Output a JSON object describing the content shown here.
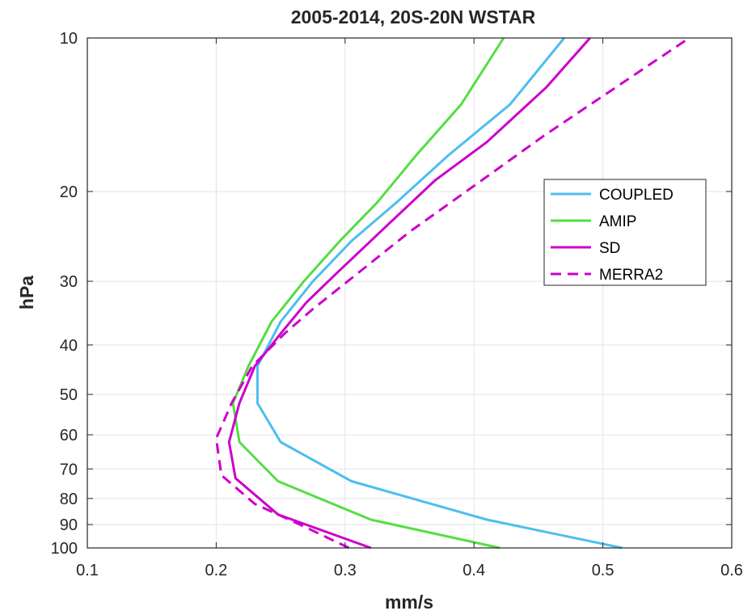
{
  "chart_data": {
    "type": "line",
    "title": "2005-2014, 20S-20N WSTAR",
    "xlabel": "mm/s",
    "ylabel": "hPa",
    "xlim": [
      0.1,
      0.6
    ],
    "ylim": [
      10,
      100
    ],
    "y_scale": "log",
    "y_reversed": true,
    "grid": true,
    "legend_position": "right",
    "xticks": [
      "0.1",
      "0.2",
      "0.3",
      "0.4",
      "0.5",
      "0.6"
    ],
    "yticks": [
      "10",
      "20",
      "30",
      "40",
      "50",
      "60",
      "70",
      "80",
      "90",
      "100"
    ],
    "series": [
      {
        "name": "COUPLED",
        "color": "#4dbeee",
        "dash": "solid",
        "points": [
          [
            0.515,
            100
          ],
          [
            0.41,
            88
          ],
          [
            0.305,
            74
          ],
          [
            0.25,
            62
          ],
          [
            0.232,
            52
          ],
          [
            0.232,
            44
          ],
          [
            0.25,
            36
          ],
          [
            0.275,
            30
          ],
          [
            0.305,
            25
          ],
          [
            0.34,
            21
          ],
          [
            0.38,
            17
          ],
          [
            0.428,
            13.5
          ],
          [
            0.47,
            10
          ]
        ]
      },
      {
        "name": "AMIP",
        "color": "#55dd44",
        "dash": "solid",
        "points": [
          [
            0.42,
            100
          ],
          [
            0.32,
            88
          ],
          [
            0.248,
            74
          ],
          [
            0.218,
            62
          ],
          [
            0.213,
            52
          ],
          [
            0.225,
            44
          ],
          [
            0.243,
            36
          ],
          [
            0.268,
            30
          ],
          [
            0.296,
            25
          ],
          [
            0.325,
            21
          ],
          [
            0.355,
            17
          ],
          [
            0.39,
            13.5
          ],
          [
            0.423,
            10
          ]
        ]
      },
      {
        "name": "SD",
        "color": "#cc00cc",
        "dash": "solid",
        "points": [
          [
            0.32,
            100
          ],
          [
            0.248,
            86
          ],
          [
            0.215,
            73
          ],
          [
            0.21,
            62
          ],
          [
            0.218,
            52
          ],
          [
            0.23,
            44
          ],
          [
            0.25,
            38
          ],
          [
            0.27,
            33
          ],
          [
            0.293,
            29
          ],
          [
            0.335,
            23
          ],
          [
            0.37,
            19
          ],
          [
            0.41,
            16
          ],
          [
            0.456,
            12.5
          ],
          [
            0.49,
            10
          ]
        ]
      },
      {
        "name": "MERRA2",
        "color": "#cc00cc",
        "dash": "dashed",
        "points": [
          [
            0.303,
            100
          ],
          [
            0.265,
            90
          ],
          [
            0.23,
            82
          ],
          [
            0.204,
            72
          ],
          [
            0.2,
            61
          ],
          [
            0.212,
            52
          ],
          [
            0.228,
            44
          ],
          [
            0.253,
            38
          ],
          [
            0.275,
            34
          ],
          [
            0.302,
            30
          ],
          [
            0.35,
            24
          ],
          [
            0.4,
            19.5
          ],
          [
            0.455,
            15.5
          ],
          [
            0.51,
            12.5
          ],
          [
            0.567,
            10
          ]
        ]
      }
    ]
  }
}
